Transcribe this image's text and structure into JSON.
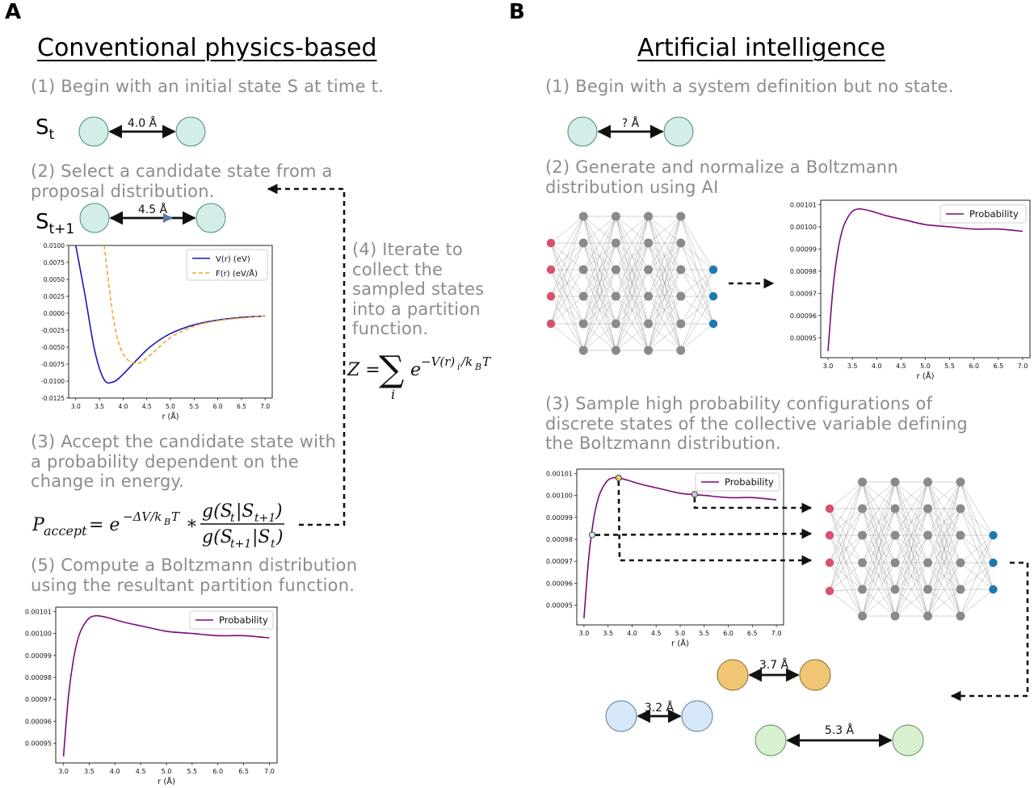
{
  "panel_a": {
    "letter": "A",
    "heading": "Conventional physics-based",
    "step1": "(1) Begin with an initial state S at time t.",
    "state_t": {
      "base": "S",
      "sub": "t",
      "distance": "4.0 Å"
    },
    "step2": "(2) Select a candidate state from a\nproposal distribution.",
    "state_t1": {
      "base": "S",
      "sub": "t+1",
      "distance": "4.5 Å"
    },
    "potential_plot": {
      "ytick_labels": [
        "0.0100",
        "0.0075",
        "0.0050",
        "0.0025",
        "0.0000",
        "-0.0025",
        "-0.0050",
        "-0.0075",
        "-0.0100",
        "-0.0125"
      ],
      "xtick_labels": [
        "3.0",
        "3.5",
        "4.0",
        "4.5",
        "5.0",
        "5.5",
        "6.0",
        "6.5",
        "7.0"
      ],
      "xlabel": "r (Å)",
      "legend": [
        "V(r) (eV)",
        "F(r) (eV/Å)"
      ],
      "colors": {
        "potential": "#1a1ab4",
        "force": "#f5a623"
      }
    },
    "step3": "(3) Accept the candidate state with\na probability dependent on the\nchange in energy.",
    "step4": "(4) Iterate to\ncollect the\nsampled states\ninto a partition\nfunction.",
    "step5": "(5) Compute a Boltzmann distribution\nusing the resultant partition function.",
    "partition_eq": "Z = Σ_i e^{−V(r)_i/k_BT}",
    "accept_eq": "P_accept = e^{−ΔV/k_BT} * g(S_t|S_t+1) / g(S_t+1|S_t)"
  },
  "panel_b": {
    "letter": "B",
    "heading": "Artificial intelligence",
    "step1": "(1) Begin with a system definition but no state.",
    "state_distance": "? Å",
    "step2": "(2) Generate and normalize a Boltzmann\ndistribution using AI",
    "step3": "(3) Sample high probability configurations of\ndiscrete states of the collective variable defining\nthe Boltzmann distribution.",
    "samples": [
      {
        "distance": "3.7 Å",
        "color": "#f0c674"
      },
      {
        "distance": "3.2 Å",
        "color": "#d6e8f8"
      },
      {
        "distance": "5.3 Å",
        "color": "#d8f0d0"
      }
    ]
  },
  "prob_plot": {
    "ytick_labels": [
      "0.00101",
      "0.00100",
      "0.00099",
      "0.00098",
      "0.00097",
      "0.00096",
      "0.00095"
    ],
    "xtick_labels": [
      "3.0",
      "3.5",
      "4.0",
      "4.5",
      "5.0",
      "5.5",
      "6.0",
      "6.5",
      "7.0"
    ],
    "xlabel": "r (Å)",
    "legend": "Probability",
    "color": "#7b0a7b"
  },
  "colors": {
    "atom_fill": "#d3ede8",
    "atom_stroke": "#4a8a80",
    "nn_node": "#8a8a8a",
    "nn_input": "#d94f6e",
    "nn_output": "#1a7ab0"
  },
  "chart_data": [
    {
      "type": "line",
      "x": [
        3.0,
        3.2,
        3.4,
        3.6,
        3.8,
        4.0,
        4.3,
        4.6,
        5.0,
        5.5,
        6.0,
        6.5,
        7.0
      ],
      "series": [
        {
          "name": "V(r) (eV)",
          "values": [
            0.01,
            0.0025,
            -0.0055,
            -0.0098,
            -0.0101,
            -0.009,
            -0.0068,
            -0.0048,
            -0.003,
            -0.0017,
            -0.001,
            -0.0006,
            -0.0004
          ]
        },
        {
          "name": "F(r) (eV/Å)",
          "values": [
            null,
            null,
            null,
            0.01,
            -0.001,
            -0.006,
            -0.0074,
            -0.006,
            -0.0036,
            -0.0019,
            -0.0011,
            -0.0007,
            -0.0004
          ]
        }
      ],
      "xlabel": "r (Å)",
      "ylim": [
        -0.0125,
        0.01
      ],
      "xlim": [
        2.85,
        7.15
      ]
    },
    {
      "type": "line",
      "x": [
        3.0,
        3.1,
        3.2,
        3.3,
        3.4,
        3.5,
        3.6,
        3.7,
        3.9,
        4.2,
        4.6,
        5.0,
        5.5,
        6.0,
        6.5,
        7.0
      ],
      "series": [
        {
          "name": "Probability",
          "values": [
            0.000944,
            0.000972,
            0.000989,
            0.000999,
            0.001004,
            0.001007,
            0.001008,
            0.001008,
            0.001007,
            0.001005,
            0.001003,
            0.001001,
            0.001,
            0.000999,
            0.000999,
            0.000998
          ]
        }
      ],
      "xlabel": "r (Å)",
      "ylim": [
        0.000941,
        0.001012
      ],
      "xlim": [
        2.85,
        7.15
      ]
    }
  ]
}
